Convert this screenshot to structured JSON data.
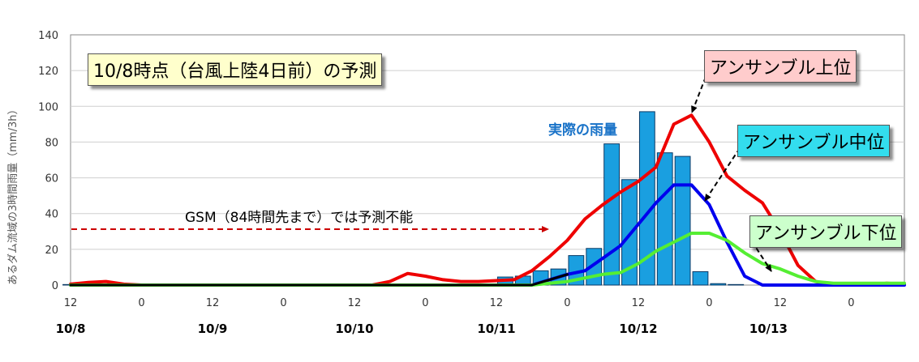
{
  "chart_data": {
    "type": "bar+line",
    "title": "10/8時点（台風上陸4日前）の予測",
    "ylabel": "あるダム流域の3時間雨量（mm/3h）",
    "ylim": [
      0,
      140
    ],
    "yticks": [
      0,
      20,
      40,
      60,
      80,
      100,
      120,
      140
    ],
    "xlim_hours": [
      0,
      141
    ],
    "x_tick_labels": [
      {
        "h": 0,
        "label": "12"
      },
      {
        "h": 12,
        "label": "0"
      },
      {
        "h": 24,
        "label": "12"
      },
      {
        "h": 36,
        "label": "0"
      },
      {
        "h": 48,
        "label": "12"
      },
      {
        "h": 60,
        "label": "0"
      },
      {
        "h": 72,
        "label": "12"
      },
      {
        "h": 84,
        "label": "0"
      },
      {
        "h": 96,
        "label": "12"
      },
      {
        "h": 108,
        "label": "0"
      },
      {
        "h": 120,
        "label": "12"
      },
      {
        "h": 132,
        "label": "0"
      }
    ],
    "date_labels": [
      {
        "h": 0,
        "label": "10/8"
      },
      {
        "h": 24,
        "label": "10/9"
      },
      {
        "h": 48,
        "label": "10/10"
      },
      {
        "h": 72,
        "label": "10/11"
      },
      {
        "h": 96,
        "label": "10/12"
      },
      {
        "h": 118,
        "label": "10/13"
      }
    ],
    "bars": {
      "name": "実際の雨量",
      "color": "#1a9fe0",
      "data": [
        {
          "h": 0,
          "v": 0.3
        },
        {
          "h": 73.5,
          "v": 4.5
        },
        {
          "h": 76.5,
          "v": 5
        },
        {
          "h": 79.5,
          "v": 8
        },
        {
          "h": 82.5,
          "v": 9
        },
        {
          "h": 85.5,
          "v": 16.5
        },
        {
          "h": 88.5,
          "v": 20.5
        },
        {
          "h": 91.5,
          "v": 79
        },
        {
          "h": 94.5,
          "v": 59
        },
        {
          "h": 97.5,
          "v": 97
        },
        {
          "h": 100.5,
          "v": 74
        },
        {
          "h": 103.5,
          "v": 72
        },
        {
          "h": 106.5,
          "v": 7.5
        },
        {
          "h": 109.5,
          "v": 0.8
        },
        {
          "h": 112.5,
          "v": 0.3
        }
      ]
    },
    "series": [
      {
        "name": "アンサンブル上位",
        "color": "#ee0000",
        "points": [
          [
            0,
            0.5
          ],
          [
            3,
            1.5
          ],
          [
            6,
            2
          ],
          [
            9,
            0.5
          ],
          [
            12,
            0
          ],
          [
            51,
            0
          ],
          [
            54,
            2
          ],
          [
            57,
            6.5
          ],
          [
            60,
            5
          ],
          [
            63,
            3
          ],
          [
            66,
            2
          ],
          [
            69,
            2
          ],
          [
            72,
            2.5
          ],
          [
            75,
            3
          ],
          [
            78,
            8
          ],
          [
            81,
            16
          ],
          [
            84,
            25
          ],
          [
            87,
            37
          ],
          [
            90,
            45
          ],
          [
            93,
            52
          ],
          [
            96,
            58
          ],
          [
            99,
            66
          ],
          [
            102,
            90
          ],
          [
            105,
            95
          ],
          [
            108,
            80
          ],
          [
            111,
            61
          ],
          [
            114,
            53
          ],
          [
            117,
            46
          ],
          [
            120,
            30
          ],
          [
            123,
            11
          ],
          [
            126,
            2
          ],
          [
            129,
            0
          ],
          [
            135,
            0
          ],
          [
            138,
            1
          ],
          [
            141,
            0.5
          ]
        ]
      },
      {
        "name": "アンサンブル中位",
        "color": "#0000ee",
        "points": [
          [
            0,
            0
          ],
          [
            78,
            0
          ],
          [
            81,
            3
          ],
          [
            84,
            6
          ],
          [
            87,
            8
          ],
          [
            90,
            15
          ],
          [
            93,
            22
          ],
          [
            96,
            34
          ],
          [
            99,
            46
          ],
          [
            102,
            56
          ],
          [
            105,
            56
          ],
          [
            108,
            45
          ],
          [
            111,
            24
          ],
          [
            114,
            5
          ],
          [
            117,
            0
          ],
          [
            141,
            0
          ]
        ]
      },
      {
        "name": "アンサンブル下位",
        "color": "#55ee33",
        "points": [
          [
            0,
            0
          ],
          [
            78,
            0
          ],
          [
            81,
            1
          ],
          [
            84,
            2
          ],
          [
            87,
            4
          ],
          [
            90,
            6
          ],
          [
            93,
            7
          ],
          [
            96,
            12
          ],
          [
            99,
            19
          ],
          [
            102,
            24
          ],
          [
            105,
            29
          ],
          [
            108,
            29
          ],
          [
            111,
            25
          ],
          [
            114,
            18
          ],
          [
            117,
            12
          ],
          [
            120,
            9
          ],
          [
            123,
            5
          ],
          [
            126,
            2
          ],
          [
            129,
            1
          ],
          [
            135,
            1
          ],
          [
            138,
            1
          ],
          [
            141,
            1
          ]
        ]
      },
      {
        "name": "GSM",
        "color": "#000000",
        "points": [
          [
            0,
            0
          ],
          [
            78,
            0
          ],
          [
            81,
            3
          ],
          [
            84,
            6
          ]
        ]
      }
    ],
    "annotations": {
      "actual_label": "実際の雨量",
      "gsm_label": "GSM（84時間先まで）では予測不能",
      "upper_label": "アンサンブル上位",
      "mid_label": "アンサンブル中位",
      "low_label": "アンサンブル下位"
    }
  }
}
